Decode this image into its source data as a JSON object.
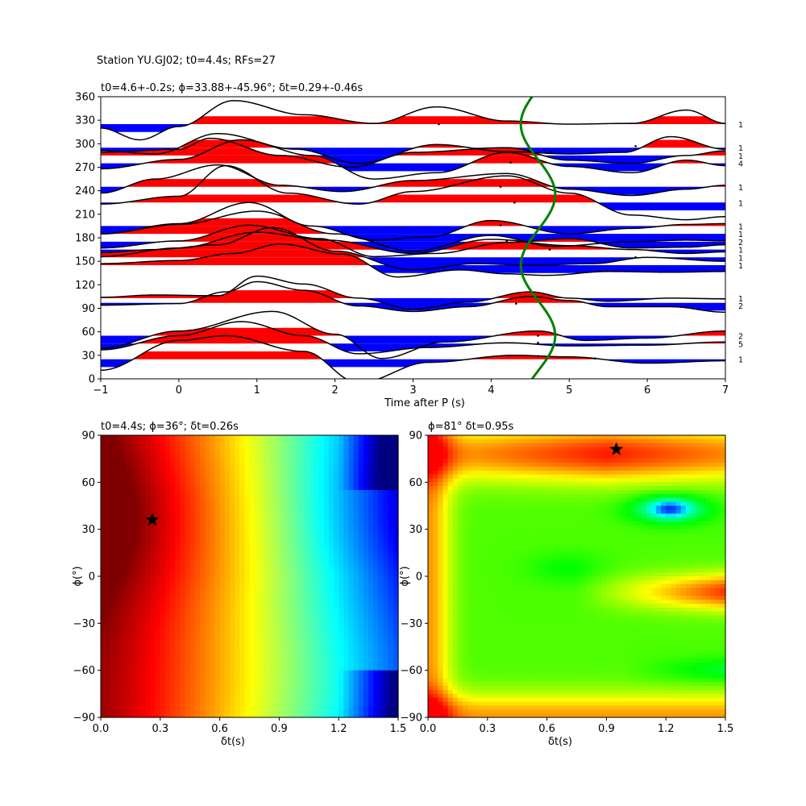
{
  "suptitle": "Station YU.GJ02; t0=4.4s; RFs=27",
  "chart_data": [
    {
      "type": "wiggle",
      "title": "t0=4.6+-0.2s; ϕ=33.88+-45.96°; δt=0.29+-0.46s",
      "xlabel": "Time after P (s)",
      "ylabel": "",
      "xlim": [
        -1,
        7
      ],
      "ylim": [
        0,
        360
      ],
      "xticks": [
        "−1",
        "0",
        "1",
        "2",
        "3",
        "4",
        "5",
        "6",
        "7"
      ],
      "yticks": [
        "0",
        "30",
        "60",
        "90",
        "120",
        "150",
        "180",
        "210",
        "240",
        "270",
        "300",
        "330",
        "360"
      ],
      "fill_positive": "#ff0000",
      "fill_negative": "#0000ff",
      "trace_color": "#000000",
      "traces": [
        {
          "baz": 325,
          "count": "1",
          "knots": [
            [
              -1,
              -5
            ],
            [
              -0.5,
              -20
            ],
            [
              0,
              -3
            ],
            [
              0.7,
              30
            ],
            [
              1.6,
              12
            ],
            [
              2.5,
              1
            ],
            [
              3.3,
              22
            ],
            [
              4.2,
              4
            ],
            [
              5,
              0
            ],
            [
              5.8,
              1
            ],
            [
              6.5,
              18
            ],
            [
              7,
              1
            ]
          ]
        },
        {
          "baz": 295,
          "count": "1",
          "knots": [
            [
              -1,
              -4
            ],
            [
              -0.3,
              -8
            ],
            [
              0.5,
              18
            ],
            [
              1.5,
              -2
            ],
            [
              2.3,
              -20
            ],
            [
              3.3,
              4
            ],
            [
              4.2,
              -5
            ],
            [
              5,
              -8
            ],
            [
              5.7,
              -6
            ],
            [
              6.3,
              14
            ],
            [
              7,
              -2
            ]
          ]
        },
        {
          "baz": 285,
          "count": "1",
          "knots": [
            [
              -1,
              4
            ],
            [
              0,
              8
            ],
            [
              0.4,
              22
            ],
            [
              1.3,
              0
            ],
            [
              2.2,
              -15
            ],
            [
              3,
              4
            ],
            [
              4.2,
              10
            ],
            [
              5,
              -6
            ],
            [
              5.8,
              -10
            ],
            [
              6.5,
              0
            ],
            [
              7,
              6
            ]
          ]
        },
        {
          "baz": 275,
          "count": "4",
          "knots": [
            [
              -1,
              -7
            ],
            [
              0,
              5
            ],
            [
              0.8,
              30
            ],
            [
              1.7,
              10
            ],
            [
              2.5,
              -20
            ],
            [
              3.3,
              -12
            ],
            [
              4.2,
              14
            ],
            [
              5,
              -4
            ],
            [
              5.8,
              -12
            ],
            [
              6.5,
              4
            ],
            [
              7,
              -3
            ]
          ]
        },
        {
          "baz": 245,
          "count": "1",
          "knots": [
            [
              -1,
              -8
            ],
            [
              -0.3,
              10
            ],
            [
              0.5,
              28
            ],
            [
              1.3,
              2
            ],
            [
              2.1,
              -6
            ],
            [
              3,
              8
            ],
            [
              4.2,
              17
            ],
            [
              5,
              -3
            ],
            [
              5.8,
              -11
            ],
            [
              6.5,
              -3
            ],
            [
              7,
              2
            ]
          ]
        },
        {
          "baz": 225,
          "count": "1",
          "knots": [
            [
              -1,
              -2
            ],
            [
              0,
              8
            ],
            [
              0.6,
              47
            ],
            [
              1.4,
              12
            ],
            [
              2.3,
              -2
            ],
            [
              3,
              14
            ],
            [
              4.2,
              34
            ],
            [
              5,
              12
            ],
            [
              5.8,
              -16
            ],
            [
              6.5,
              -22
            ],
            [
              7,
              -18
            ]
          ]
        },
        {
          "baz": 195,
          "count": "1",
          "knots": [
            [
              -1,
              -10
            ],
            [
              0,
              3
            ],
            [
              0.9,
              30
            ],
            [
              1.7,
              0
            ],
            [
              2.5,
              -18
            ],
            [
              3.2,
              -14
            ],
            [
              4,
              7
            ],
            [
              5,
              -10
            ],
            [
              5.8,
              -3
            ],
            [
              6.5,
              2
            ],
            [
              7,
              3
            ]
          ]
        },
        {
          "baz": 185,
          "count": "1",
          "knots": [
            [
              -1,
              0
            ],
            [
              0,
              12
            ],
            [
              1,
              29
            ],
            [
              2,
              0
            ],
            [
              3,
              -22
            ],
            [
              4,
              -2
            ],
            [
              4.8,
              -16
            ],
            [
              5.8,
              -10
            ],
            [
              6.5,
              -8
            ],
            [
              7,
              -9
            ]
          ]
        },
        {
          "baz": 175,
          "count": "2",
          "knots": [
            [
              -1,
              -8
            ],
            [
              0,
              1
            ],
            [
              0.9,
              21
            ],
            [
              1.8,
              4
            ],
            [
              2.5,
              -19
            ],
            [
              3.3,
              -15
            ],
            [
              4.2,
              -1
            ],
            [
              5,
              4
            ],
            [
              5.8,
              -8
            ],
            [
              6.5,
              -7
            ],
            [
              7,
              -4
            ]
          ]
        },
        {
          "baz": 165,
          "count": "1",
          "knots": [
            [
              -1,
              -9
            ],
            [
              0,
              2
            ],
            [
              1,
              22
            ],
            [
              1.9,
              12
            ],
            [
              3,
              -5
            ],
            [
              4,
              13
            ],
            [
              5,
              5
            ],
            [
              5.8,
              0
            ],
            [
              6.5,
              -5
            ],
            [
              7,
              -3
            ]
          ]
        },
        {
          "baz": 155,
          "count": "1",
          "knots": [
            [
              -1,
              6
            ],
            [
              -0.3,
              10
            ],
            [
              0.5,
              16
            ],
            [
              1.2,
              38
            ],
            [
              2,
              8
            ],
            [
              3,
              -16
            ],
            [
              3.8,
              -8
            ],
            [
              4.5,
              -10
            ],
            [
              5.3,
              -8
            ],
            [
              6,
              0
            ],
            [
              7,
              -5
            ]
          ]
        },
        {
          "baz": 145,
          "count": "1",
          "knots": [
            [
              -1,
              2
            ],
            [
              0,
              6
            ],
            [
              0.7,
              15
            ],
            [
              1.3,
              27
            ],
            [
              2.1,
              14
            ],
            [
              2.8,
              -15
            ],
            [
              3.6,
              -6
            ],
            [
              4.2,
              -11
            ],
            [
              4.7,
              -13
            ],
            [
              5.5,
              -8
            ],
            [
              6.3,
              -9
            ],
            [
              7,
              -8
            ]
          ]
        },
        {
          "baz": 103,
          "count": "1",
          "knots": [
            [
              -1,
              1
            ],
            [
              -0.3,
              4
            ],
            [
              0.5,
              3
            ],
            [
              1,
              28
            ],
            [
              1.6,
              18
            ],
            [
              2.3,
              0
            ],
            [
              3,
              -14
            ],
            [
              3.7,
              -5
            ],
            [
              4.5,
              8
            ],
            [
              5,
              0
            ],
            [
              5.5,
              -4
            ],
            [
              6.3,
              0
            ],
            [
              7,
              -1
            ]
          ]
        },
        {
          "baz": 97,
          "count": "2",
          "knots": [
            [
              -1,
              -3
            ],
            [
              0,
              -1
            ],
            [
              0.6,
              14
            ],
            [
              1,
              27
            ],
            [
              1.6,
              16
            ],
            [
              2.3,
              -4
            ],
            [
              3,
              -11
            ],
            [
              3.7,
              -5
            ],
            [
              4.5,
              8
            ],
            [
              5,
              3
            ],
            [
              5.5,
              -5
            ],
            [
              6.3,
              -5
            ],
            [
              7,
              -12
            ]
          ]
        },
        {
          "baz": 55,
          "count": "2",
          "knots": [
            [
              -1,
              -16
            ],
            [
              0,
              6
            ],
            [
              1.2,
              31
            ],
            [
              2,
              2
            ],
            [
              2.6,
              -29
            ],
            [
              3.4,
              -8
            ],
            [
              4.6,
              6
            ],
            [
              5.2,
              -6
            ],
            [
              6,
              -3
            ],
            [
              7,
              6
            ]
          ]
        },
        {
          "baz": 45,
          "count": "5",
          "knots": [
            [
              -1,
              -8
            ],
            [
              0,
              10
            ],
            [
              0.8,
              28
            ],
            [
              1.6,
              10
            ],
            [
              2.3,
              -13
            ],
            [
              3.2,
              -5
            ],
            [
              4.2,
              1
            ],
            [
              5,
              -3
            ],
            [
              6,
              -2
            ],
            [
              7,
              2
            ]
          ]
        },
        {
          "baz": 25,
          "count": "1",
          "knots": [
            [
              -1,
              -14
            ],
            [
              0,
              24
            ],
            [
              0.6,
              30
            ],
            [
              1.6,
              10
            ],
            [
              2.3,
              -30
            ],
            [
              3.2,
              -4
            ],
            [
              4.3,
              5
            ],
            [
              5,
              3
            ],
            [
              6,
              -5
            ],
            [
              7,
              -2
            ]
          ]
        }
      ],
      "markers": [
        [
          3.33,
          325
        ],
        [
          5.85,
          297
        ],
        [
          4.77,
          290
        ],
        [
          4.25,
          276
        ],
        [
          4.12,
          245
        ],
        [
          4.3,
          225
        ],
        [
          4.12,
          196
        ],
        [
          4.2,
          176
        ],
        [
          4.75,
          165
        ],
        [
          5.85,
          155
        ],
        [
          4.5,
          145
        ],
        [
          4.32,
          96
        ],
        [
          4.6,
          55
        ],
        [
          4.6,
          46
        ],
        [
          5.33,
          26
        ],
        [
          4.6,
          29
        ]
      ],
      "t0_curve": {
        "color": "#008000",
        "base_time": 4.6,
        "amplitude": 0.22,
        "period_deg": 180
      }
    },
    {
      "type": "heatmap",
      "title": "t0=4.4s; ϕ=36°; δt=0.26s",
      "xlabel": "δt(s)",
      "ylabel": "ϕ(°)",
      "xlim": [
        0,
        1.5
      ],
      "ylim": [
        -90,
        90
      ],
      "xticks": [
        "0.0",
        "0.3",
        "0.6",
        "0.9",
        "1.2",
        "1.5"
      ],
      "yticks": [
        "−90",
        "−60",
        "−30",
        "0",
        "30",
        "60",
        "90"
      ],
      "colormap": "jet",
      "best": {
        "dt": 0.26,
        "phi": 36
      }
    },
    {
      "type": "heatmap",
      "title": "ϕ=81° δt=0.95s",
      "xlabel": "δt(s)",
      "ylabel": "ϕ(°)",
      "xlim": [
        0,
        1.5
      ],
      "ylim": [
        -90,
        90
      ],
      "xticks": [
        "0.0",
        "0.3",
        "0.6",
        "0.9",
        "1.2",
        "1.5"
      ],
      "yticks": [
        "−90",
        "−60",
        "−30",
        "0",
        "30",
        "60",
        "90"
      ],
      "colormap": "hsv",
      "best": {
        "dt": 0.95,
        "phi": 81
      }
    }
  ]
}
